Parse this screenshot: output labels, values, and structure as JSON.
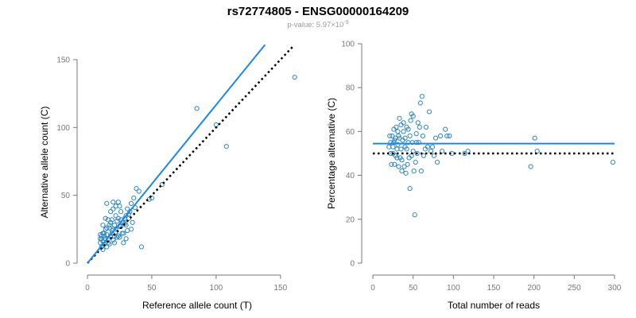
{
  "header": {
    "title": "rs72774805 - ENSG00000164209",
    "pvalue_label": "p-value: 5.97×10",
    "pvalue_exponent": "-9"
  },
  "colors": {
    "points": "#2E86C1",
    "fit_line": "#1E88E5",
    "reference_line": "#000000",
    "axis": "#777777"
  },
  "chart_data": [
    {
      "type": "scatter",
      "xlabel": "Reference allele count (T)",
      "ylabel": "Alternative allele count (C)",
      "xlim": [
        0,
        160
      ],
      "ylim": [
        0,
        150
      ],
      "xticks": [
        0,
        50,
        100,
        150
      ],
      "yticks": [
        0,
        50,
        100,
        150
      ],
      "fit_line": {
        "from": [
          0,
          0
        ],
        "to": [
          138,
          161
        ]
      },
      "reference_line": {
        "from": [
          0,
          0
        ],
        "to": [
          160,
          160
        ],
        "style": "dotted"
      },
      "points": [
        [
          161,
          137
        ],
        [
          85,
          114
        ],
        [
          100,
          102
        ],
        [
          108,
          86
        ],
        [
          58,
          58
        ],
        [
          42,
          12
        ],
        [
          50,
          48
        ],
        [
          48,
          47
        ],
        [
          38,
          55
        ],
        [
          40,
          53
        ],
        [
          36,
          48
        ],
        [
          34,
          44
        ],
        [
          37,
          41
        ],
        [
          33,
          38
        ],
        [
          30,
          35
        ],
        [
          35,
          30
        ],
        [
          34,
          25
        ],
        [
          29,
          29
        ],
        [
          27,
          30
        ],
        [
          26,
          27
        ],
        [
          28,
          22
        ],
        [
          25,
          19
        ],
        [
          28,
          15
        ],
        [
          32,
          33
        ],
        [
          31,
          40
        ],
        [
          25,
          42
        ],
        [
          24,
          33
        ],
        [
          23,
          31
        ],
        [
          22,
          35
        ],
        [
          22,
          25
        ],
        [
          21,
          28
        ],
        [
          20,
          45
        ],
        [
          19,
          22
        ],
        [
          19,
          32
        ],
        [
          18,
          30
        ],
        [
          18,
          20
        ],
        [
          17,
          26
        ],
        [
          16,
          18
        ],
        [
          15,
          44
        ],
        [
          16,
          15
        ],
        [
          15,
          26
        ],
        [
          15,
          21
        ],
        [
          14,
          25
        ],
        [
          14,
          18
        ],
        [
          13,
          20
        ],
        [
          12,
          16
        ],
        [
          12,
          10
        ],
        [
          12,
          22
        ],
        [
          13,
          14
        ],
        [
          11,
          18
        ],
        [
          11,
          20
        ],
        [
          11,
          12
        ],
        [
          10,
          15
        ],
        [
          10,
          18
        ],
        [
          10,
          21
        ],
        [
          20,
          25
        ],
        [
          20,
          17
        ],
        [
          21,
          20
        ],
        [
          22,
          23
        ],
        [
          23,
          19
        ],
        [
          24,
          20
        ],
        [
          25,
          27
        ],
        [
          26,
          32
        ],
        [
          27,
          22
        ],
        [
          28,
          30
        ],
        [
          29,
          33
        ],
        [
          30,
          18
        ],
        [
          31,
          24
        ],
        [
          32,
          36
        ],
        [
          16,
          32
        ],
        [
          14,
          33
        ],
        [
          18,
          38
        ],
        [
          20,
          40
        ],
        [
          22,
          42
        ],
        [
          24,
          45
        ],
        [
          17,
          28
        ],
        [
          19,
          24
        ],
        [
          21,
          15
        ],
        [
          13,
          22
        ],
        [
          15,
          12
        ],
        [
          17,
          14
        ],
        [
          12,
          28
        ],
        [
          26,
          38
        ],
        [
          30,
          28
        ]
      ]
    },
    {
      "type": "scatter",
      "xlabel": "Total number of reads",
      "ylabel": "Percentage alternative (C)",
      "xlim": [
        0,
        300
      ],
      "ylim": [
        0,
        100
      ],
      "xticks": [
        0,
        50,
        100,
        150,
        200,
        250,
        300
      ],
      "yticks": [
        0,
        20,
        40,
        60,
        80,
        100
      ],
      "fit_line": {
        "y": 54.5
      },
      "reference_line": {
        "y": 50,
        "style": "dotted"
      },
      "points": [
        [
          298,
          46
        ],
        [
          201,
          57
        ],
        [
          204,
          51
        ],
        [
          196,
          44
        ],
        [
          118,
          51
        ],
        [
          114,
          50
        ],
        [
          98,
          50
        ],
        [
          95,
          58
        ],
        [
          90,
          61
        ],
        [
          84,
          58
        ],
        [
          80,
          46
        ],
        [
          76,
          49
        ],
        [
          72,
          51
        ],
        [
          70,
          69
        ],
        [
          68,
          53
        ],
        [
          65,
          52
        ],
        [
          63,
          49
        ],
        [
          60,
          42
        ],
        [
          59,
          73
        ],
        [
          61,
          76
        ],
        [
          58,
          62
        ],
        [
          57,
          55
        ],
        [
          55,
          50
        ],
        [
          54,
          59
        ],
        [
          53,
          46
        ],
        [
          52,
          22
        ],
        [
          51,
          42
        ],
        [
          50,
          51
        ],
        [
          49,
          55
        ],
        [
          48,
          68
        ],
        [
          47,
          65
        ],
        [
          46,
          34
        ],
        [
          46,
          58
        ],
        [
          45,
          48
        ],
        [
          44,
          55
        ],
        [
          43,
          45
        ],
        [
          42,
          62
        ],
        [
          41,
          41
        ],
        [
          40,
          53
        ],
        [
          40,
          57
        ],
        [
          39,
          44
        ],
        [
          38,
          60
        ],
        [
          37,
          56
        ],
        [
          36,
          42
        ],
        [
          35,
          63
        ],
        [
          35,
          52
        ],
        [
          34,
          48
        ],
        [
          33,
          66
        ],
        [
          33,
          57
        ],
        [
          32,
          44
        ],
        [
          31,
          60
        ],
        [
          31,
          54
        ],
        [
          30,
          52
        ],
        [
          30,
          48
        ],
        [
          29,
          62
        ],
        [
          28,
          57
        ],
        [
          27,
          56
        ],
        [
          27,
          45
        ],
        [
          26,
          61
        ],
        [
          25,
          53
        ],
        [
          25,
          50
        ],
        [
          24,
          58
        ],
        [
          23,
          45
        ],
        [
          22,
          55
        ],
        [
          22,
          50
        ],
        [
          21,
          58
        ],
        [
          20,
          53
        ],
        [
          62,
          58
        ],
        [
          66,
          62
        ],
        [
          74,
          53
        ],
        [
          78,
          57
        ],
        [
          86,
          51
        ],
        [
          92,
          58
        ],
        [
          56,
          64
        ],
        [
          50,
          67
        ],
        [
          44,
          61
        ],
        [
          38,
          64
        ],
        [
          32,
          58
        ],
        [
          28,
          49
        ],
        [
          42,
          52
        ],
        [
          48,
          49
        ],
        [
          54,
          55
        ],
        [
          36,
          47
        ],
        [
          26,
          55
        ]
      ]
    }
  ]
}
